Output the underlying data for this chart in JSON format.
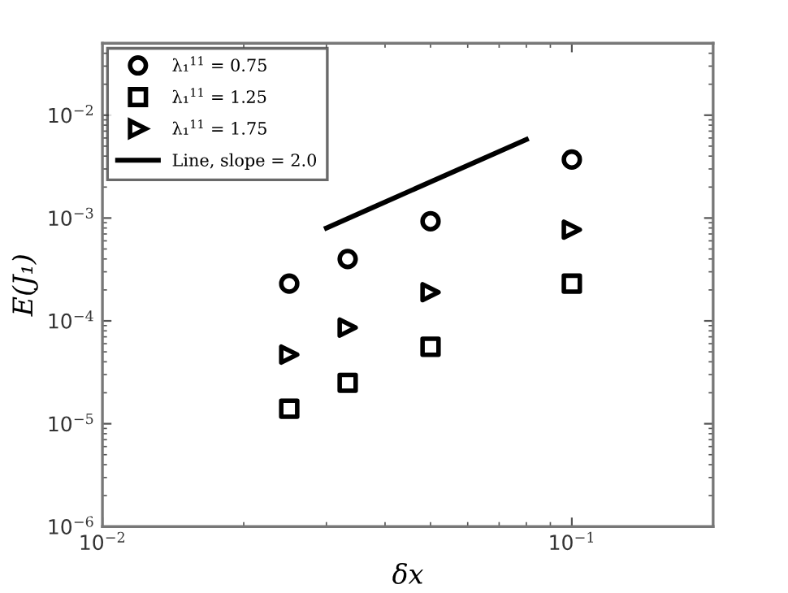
{
  "chart_data": {
    "type": "scatter",
    "xlabel": "δx",
    "ylabel": "E(J₁)",
    "log": "xy",
    "grid": false,
    "legend": "top left",
    "xlim": [
      0.01,
      0.2
    ],
    "ylim": [
      1e-06,
      0.05
    ],
    "xticks": [
      {
        "value": 0.01,
        "label": "10$^{−2}$"
      },
      {
        "value": 0.1,
        "label": "10$^{−1}$"
      }
    ],
    "yticks": [
      {
        "value": 1e-06,
        "label": "10$^{−6}$"
      },
      {
        "value": 1e-05,
        "label": "10$^{−5}$"
      },
      {
        "value": 0.0001,
        "label": "10$^{−4}$"
      },
      {
        "value": 0.001,
        "label": "10$^{−3}$"
      },
      {
        "value": 0.01,
        "label": "10$^{−2}$"
      }
    ],
    "series": [
      {
        "name": "λ₁$^{11}$ = 0.75",
        "marker": "circle",
        "color": "#000000",
        "x": [
          0.025,
          0.0333,
          0.05,
          0.1
        ],
        "values": [
          0.00023,
          0.0004,
          0.00093,
          0.0037
        ]
      },
      {
        "name": "λ₁$^{11}$ = 1.25",
        "marker": "square",
        "color": "#000000",
        "x": [
          0.025,
          0.0333,
          0.05,
          0.1
        ],
        "values": [
          1.4e-05,
          2.5e-05,
          5.6e-05,
          0.00023
        ]
      },
      {
        "name": "λ₁$^{11}$ = 1.75",
        "marker": "triangle",
        "color": "#000000",
        "x": [
          0.025,
          0.0333,
          0.05,
          0.1
        ],
        "values": [
          4.7e-05,
          8.6e-05,
          0.00019,
          0.00077
        ]
      },
      {
        "name": "Line, slope = 2.0",
        "type": "line",
        "marker": "none",
        "line_style": "solid",
        "color": "#000000",
        "x": [
          0.03,
          0.08
        ],
        "values": [
          0.0008,
          0.0058
        ]
      }
    ]
  }
}
